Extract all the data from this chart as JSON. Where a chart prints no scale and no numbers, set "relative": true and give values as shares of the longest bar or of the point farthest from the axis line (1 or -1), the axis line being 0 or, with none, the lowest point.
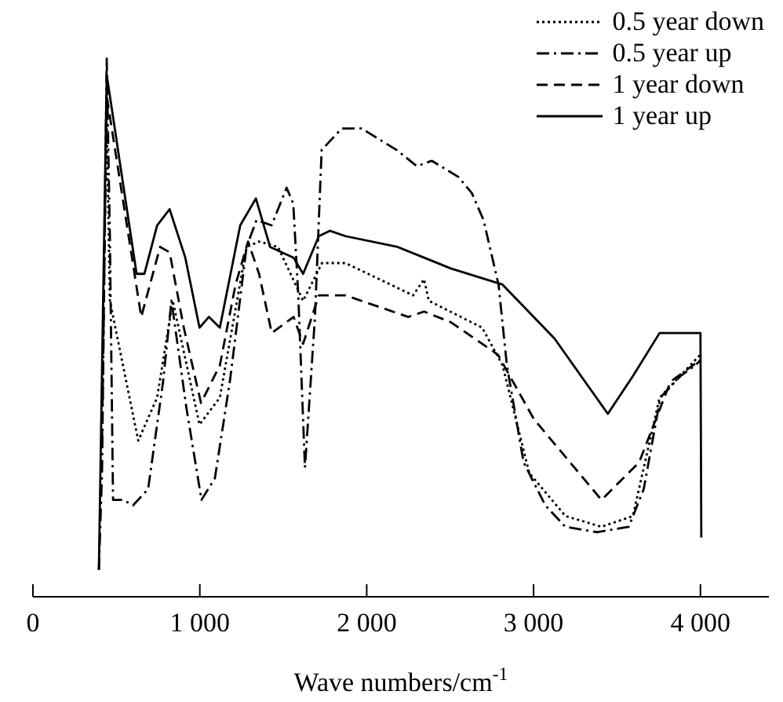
{
  "chart_data": {
    "type": "line",
    "relative": true,
    "xlabel": "Wave numbers/cm$^{-1}$",
    "xlim": [
      0,
      4410
    ],
    "xticks": [
      0,
      {
        "value": 1000,
        "label": "1 000"
      },
      {
        "value": 2000,
        "label": "2 000"
      },
      {
        "value": 3000,
        "label": "3 000"
      },
      {
        "value": 4000,
        "label": "4 000"
      }
    ],
    "legend": "top right",
    "grid": false,
    "marker": "none",
    "series": [
      {
        "name": "0.5 year down",
        "color": "#000000",
        "line_style": "dotted",
        "x": [
          442,
          461,
          631,
          744,
          838,
          998,
          1120,
          1280,
          1355,
          1468,
          1619,
          1732,
          1873,
          2278,
          2344,
          2372,
          2692,
          2814,
          2974,
          3191,
          3407,
          3595,
          3755,
          4000
        ],
        "values": [
          0.89,
          0.55,
          0.29,
          0.37,
          0.55,
          0.32,
          0.37,
          0.65,
          0.66,
          0.65,
          0.55,
          0.62,
          0.62,
          0.56,
          0.59,
          0.55,
          0.5,
          0.43,
          0.23,
          0.15,
          0.13,
          0.15,
          0.37,
          0.45
        ]
      },
      {
        "name": "0.5 year up",
        "color": "#000000",
        "line_style": "dashdot",
        "x": [
          395,
          414,
          442,
          461,
          480,
          540,
          600,
          690,
          780,
          830,
          920,
          1010,
          1090,
          1180,
          1280,
          1340,
          1430,
          1520,
          1560,
          1590,
          1630,
          1690,
          1730,
          1850,
          1970,
          2180,
          2300,
          2390,
          2550,
          2630,
          2700,
          2790,
          2840,
          2940,
          3070,
          3190,
          3380,
          3570,
          3660,
          3760,
          3880,
          3970,
          4000
        ],
        "values": [
          0.05,
          0.23,
          1.0,
          0.67,
          0.18,
          0.18,
          0.17,
          0.2,
          0.4,
          0.55,
          0.35,
          0.18,
          0.22,
          0.4,
          0.65,
          0.7,
          0.69,
          0.76,
          0.73,
          0.56,
          0.24,
          0.52,
          0.83,
          0.87,
          0.87,
          0.83,
          0.8,
          0.81,
          0.78,
          0.75,
          0.7,
          0.58,
          0.43,
          0.25,
          0.17,
          0.13,
          0.12,
          0.13,
          0.2,
          0.37,
          0.41,
          0.43,
          0.44
        ]
      },
      {
        "name": "1 year down",
        "color": "#000000",
        "line_style": "dashed",
        "x": [
          414,
          442,
          649,
          762,
          819,
          904,
          1007,
          1120,
          1214,
          1289,
          1355,
          1431,
          1562,
          1619,
          1713,
          1873,
          2249,
          2344,
          2504,
          2786,
          3002,
          3407,
          3633,
          3821,
          4000
        ],
        "values": [
          0.29,
          0.93,
          0.52,
          0.65,
          0.64,
          0.5,
          0.36,
          0.43,
          0.58,
          0.66,
          0.6,
          0.49,
          0.52,
          0.47,
          0.56,
          0.56,
          0.52,
          0.53,
          0.51,
          0.45,
          0.33,
          0.18,
          0.25,
          0.4,
          0.44
        ]
      },
      {
        "name": "1 year up",
        "color": "#000000",
        "line_style": "solid",
        "x": [
          395,
          442,
          621,
          668,
          744,
          819,
          913,
          998,
          1054,
          1120,
          1242,
          1336,
          1421,
          1562,
          1619,
          1713,
          1779,
          1873,
          2184,
          2344,
          2504,
          2814,
          3125,
          3445,
          3595,
          3755,
          4000,
          4005
        ],
        "values": [
          0.05,
          0.97,
          0.6,
          0.6,
          0.69,
          0.72,
          0.63,
          0.5,
          0.52,
          0.5,
          0.69,
          0.74,
          0.65,
          0.63,
          0.6,
          0.67,
          0.68,
          0.67,
          0.65,
          0.63,
          0.61,
          0.58,
          0.48,
          0.34,
          0.41,
          0.49,
          0.49,
          0.11
        ]
      }
    ]
  }
}
